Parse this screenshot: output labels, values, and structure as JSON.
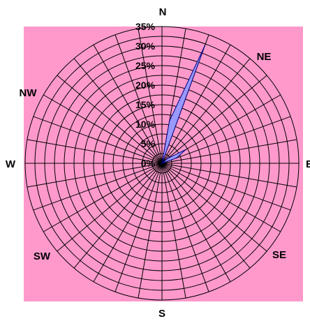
{
  "chart_data": {
    "type": "radar",
    "title": "",
    "direction_labels": [
      "N",
      "NE",
      "E",
      "SE",
      "S",
      "SW",
      "W",
      "NW"
    ],
    "radial_ticks": [
      "0%",
      "5%",
      "10%",
      "15%",
      "20%",
      "25%",
      "30%",
      "35%"
    ],
    "radial_range": [
      0,
      35
    ],
    "grid": true,
    "num_bearings": 36,
    "series": [
      {
        "points": [
          {
            "bearing_deg": 0,
            "value": 0
          },
          {
            "bearing_deg": 10,
            "value": 11
          },
          {
            "bearing_deg": 20,
            "value": 32
          },
          {
            "bearing_deg": 30,
            "value": 0
          },
          {
            "bearing_deg": 50,
            "value": 2
          },
          {
            "bearing_deg": 60,
            "value": 7
          },
          {
            "bearing_deg": 70,
            "value": 4
          },
          {
            "bearing_deg": 80,
            "value": 0
          }
        ]
      }
    ],
    "colors": {
      "plot_background": "#FF99CC",
      "series_fill": "#9999FF",
      "series_stroke": "#000080",
      "grid": "#000000"
    }
  }
}
